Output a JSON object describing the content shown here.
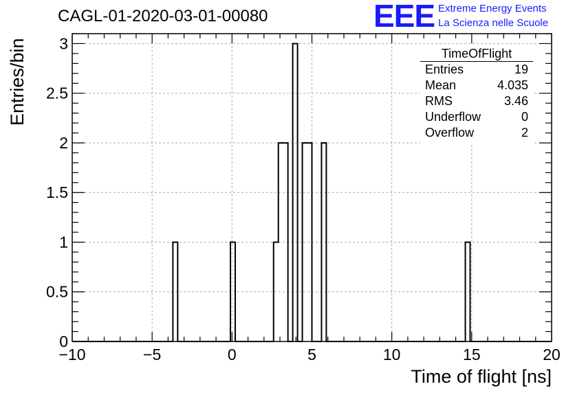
{
  "header": {
    "title": "CAGL-01-2020-03-01-00080",
    "logo_text": "EEE",
    "logo_line1": "Extreme Energy Events",
    "logo_line2": "La Scienza nelle Scuole",
    "logo_color": "#1a1aff"
  },
  "stats_box": {
    "title": "TimeOfFlight",
    "rows": [
      {
        "label": "Entries",
        "value": "19"
      },
      {
        "label": "Mean",
        "value": "4.035"
      },
      {
        "label": "RMS",
        "value": "3.46"
      },
      {
        "label": "Underflow",
        "value": "0"
      },
      {
        "label": "Overflow",
        "value": "2"
      }
    ]
  },
  "chart_data": {
    "type": "bar",
    "subtype": "histogram",
    "title": "CAGL-01-2020-03-01-00080",
    "xlabel": "Time of flight [ns]",
    "ylabel": "Entries/bin",
    "xlim": [
      -10,
      20
    ],
    "ylim": [
      0,
      3.1
    ],
    "bin_width": 0.3,
    "x_ticks": [
      -10,
      -5,
      0,
      5,
      10,
      15,
      20
    ],
    "x_tick_labels": [
      "−10",
      "−5",
      "0",
      "5",
      "10",
      "15",
      "20"
    ],
    "y_ticks": [
      0,
      0.5,
      1,
      1.5,
      2,
      2.5,
      3
    ],
    "y_tick_labels": [
      "0",
      "0.5",
      "1",
      "1.5",
      "2",
      "2.5",
      "3"
    ],
    "grid": true,
    "bins": [
      {
        "x": -3.7,
        "count": 1
      },
      {
        "x": -0.1,
        "count": 1
      },
      {
        "x": 2.6,
        "count": 1
      },
      {
        "x": 2.9,
        "count": 2
      },
      {
        "x": 3.2,
        "count": 2
      },
      {
        "x": 3.8,
        "count": 3
      },
      {
        "x": 4.4,
        "count": 2
      },
      {
        "x": 4.7,
        "count": 2
      },
      {
        "x": 5.6,
        "count": 2
      },
      {
        "x": 14.6,
        "count": 1
      }
    ]
  }
}
